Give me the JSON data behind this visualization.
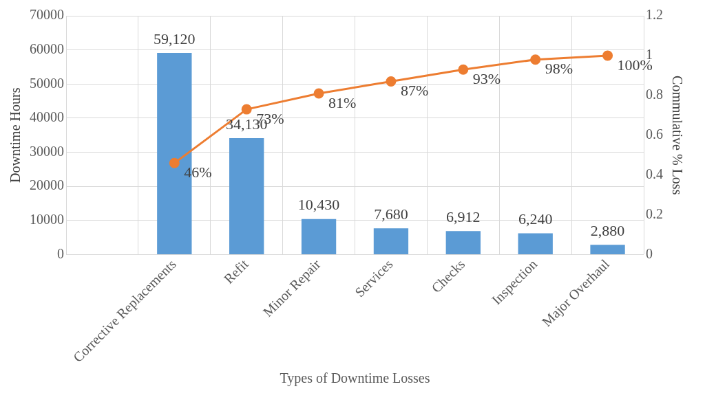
{
  "chart_data": {
    "type": "bar",
    "xlabel": "Types of Downtime Losses",
    "ylabel": "Downtime Hours",
    "y2label": "Commulative % Loss",
    "categories": [
      null,
      "Corrective Replacements",
      "Refit",
      "Minor Repair",
      "Services",
      "Checks",
      "Inspection",
      "Major Overhaul"
    ],
    "series": [
      {
        "color": "#5b9bd5",
        "values": [
          null,
          59120,
          34130,
          10430,
          7680,
          6912,
          6240,
          2880
        ],
        "value_labels": [
          null,
          "59,120",
          "34,130",
          "10,430",
          "7,680",
          "6,912",
          "6,240",
          "2,880"
        ]
      },
      {
        "type": "line",
        "axis": "y2",
        "color": "#ed7d31",
        "marker": "circle",
        "values": [
          null,
          0.46,
          0.73,
          0.81,
          0.87,
          0.93,
          0.98,
          1.0
        ],
        "value_labels": [
          null,
          "46%",
          "73%",
          "81%",
          "87%",
          "93%",
          "98%",
          "100%"
        ]
      }
    ],
    "ylim": [
      0,
      70000
    ],
    "yticks": [
      0,
      10000,
      20000,
      30000,
      40000,
      50000,
      60000,
      70000
    ],
    "y2lim": [
      0,
      1.2
    ],
    "y2ticks": [
      0,
      0.2,
      0.4,
      0.6,
      0.8,
      1,
      1.2
    ],
    "grid": true,
    "legend": false
  }
}
